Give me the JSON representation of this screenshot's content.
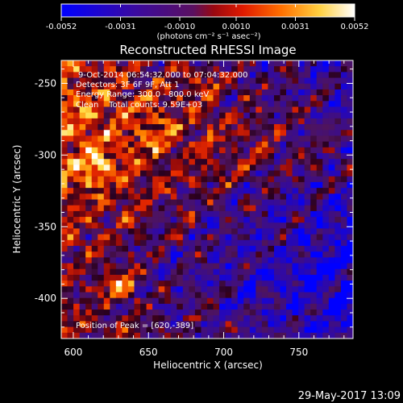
{
  "footer_timestamp": "29-May-2017 13:09",
  "colorbar": {
    "tick_labels": [
      "-0.0052",
      "-0.0031",
      "-0.0010",
      "0.0010",
      "0.0031",
      "0.0052"
    ],
    "tick_values": [
      -0.0052,
      -0.0031,
      -0.001,
      0.001,
      0.0031,
      0.0052
    ],
    "range": [
      -0.0052,
      0.0052
    ],
    "units": "(photons cm⁻² s⁻¹ asec⁻²)",
    "colormap": "blue-purple-red-orange-yellow-white"
  },
  "chart_data": {
    "type": "heatmap",
    "title": "Reconstructed RHESSI Image",
    "xlabel": "Heliocentric X (arcsec)",
    "ylabel": "Heliocentric Y (arcsec)",
    "xlim": [
      592,
      786
    ],
    "ylim": [
      -428,
      -234
    ],
    "x_ticks": [
      600,
      650,
      700,
      750
    ],
    "y_ticks": [
      -250,
      -300,
      -350,
      -400
    ],
    "x_tick_labels": [
      "600",
      "650",
      "700",
      "750"
    ],
    "y_tick_labels": [
      "-250",
      "-300",
      "-350",
      "-400"
    ],
    "annotations": [
      "9-Oct-2014 06:54:32.000 to 07:04:32.000",
      "Detectors: 3F 6F 9F, Att 1",
      "Energy Range: 300.0 - 800.0 keV",
      "Clean    Total counts: 9.59E+03"
    ],
    "peak_label": "Position of Peak = [620,-389]",
    "peak": [
      620,
      -389
    ],
    "grid": false
  }
}
